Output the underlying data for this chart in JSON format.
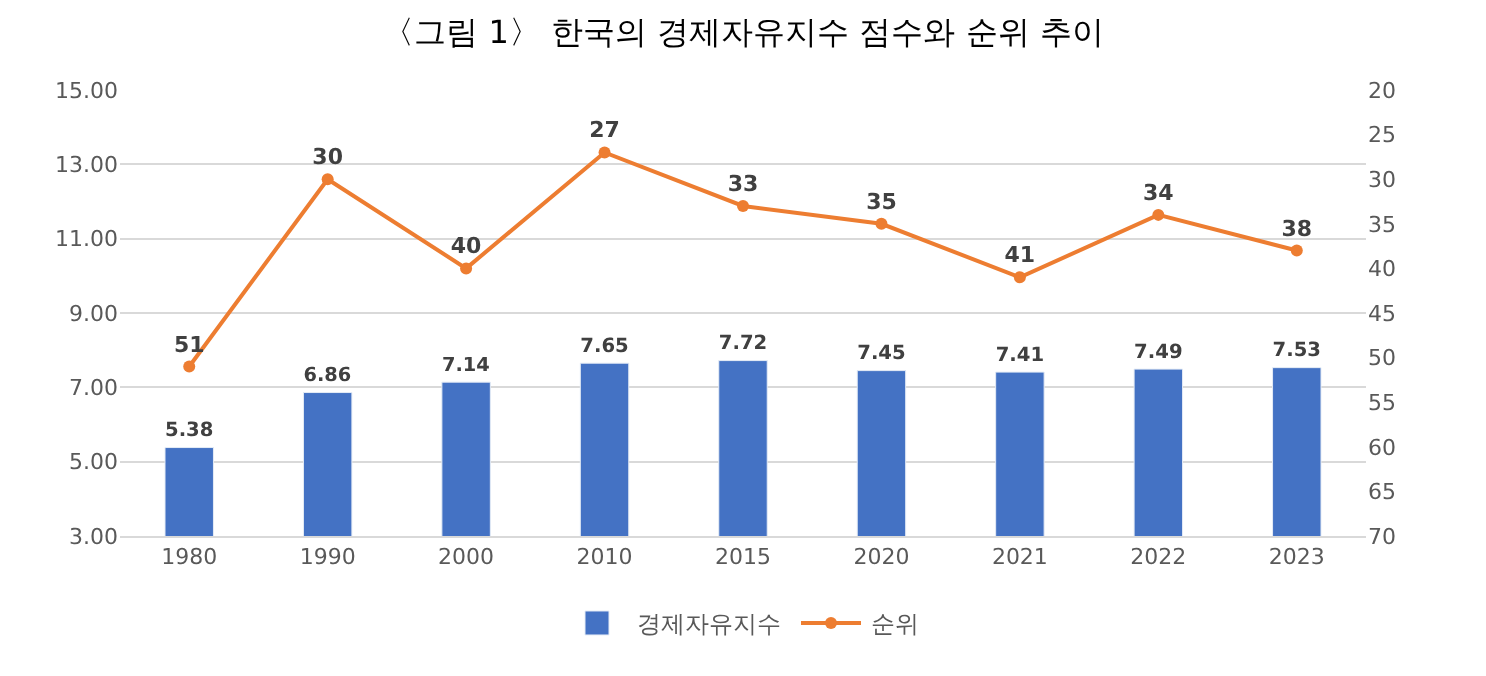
{
  "chart_data": {
    "type": "bar",
    "title": "〈그림 1〉 한국의 경제자유지수 점수와 순위 추이",
    "categories": [
      "1980",
      "1990",
      "2000",
      "2010",
      "2015",
      "2020",
      "2021",
      "2022",
      "2023"
    ],
    "series": [
      {
        "name": "경제자유지수",
        "color": "#4472c4",
        "values": [
          5.38,
          6.86,
          7.14,
          7.65,
          7.72,
          7.45,
          7.41,
          7.49,
          7.53
        ]
      },
      {
        "name": "순위",
        "type": "line",
        "axis": "y2",
        "color": "#ed7d31",
        "marker": "circle",
        "values": [
          51,
          30,
          40,
          27,
          33,
          35,
          41,
          34,
          38
        ]
      }
    ],
    "ylim": [
      3,
      15
    ],
    "yticks": [
      {
        "value": 3,
        "label": "3.00"
      },
      {
        "value": 5,
        "label": "5.00"
      },
      {
        "value": 7,
        "label": "7.00"
      },
      {
        "value": 9,
        "label": "9.00"
      },
      {
        "value": 11,
        "label": "11.00"
      },
      {
        "value": 13,
        "label": "13.00"
      },
      {
        "value": 15,
        "label": "15.00"
      }
    ],
    "y2lim": [
      70,
      20
    ],
    "y2ticks": [
      20,
      25,
      30,
      35,
      40,
      45,
      50,
      55,
      60,
      65,
      70
    ],
    "data_labels": true,
    "grid": "y",
    "legend": "bottom"
  }
}
